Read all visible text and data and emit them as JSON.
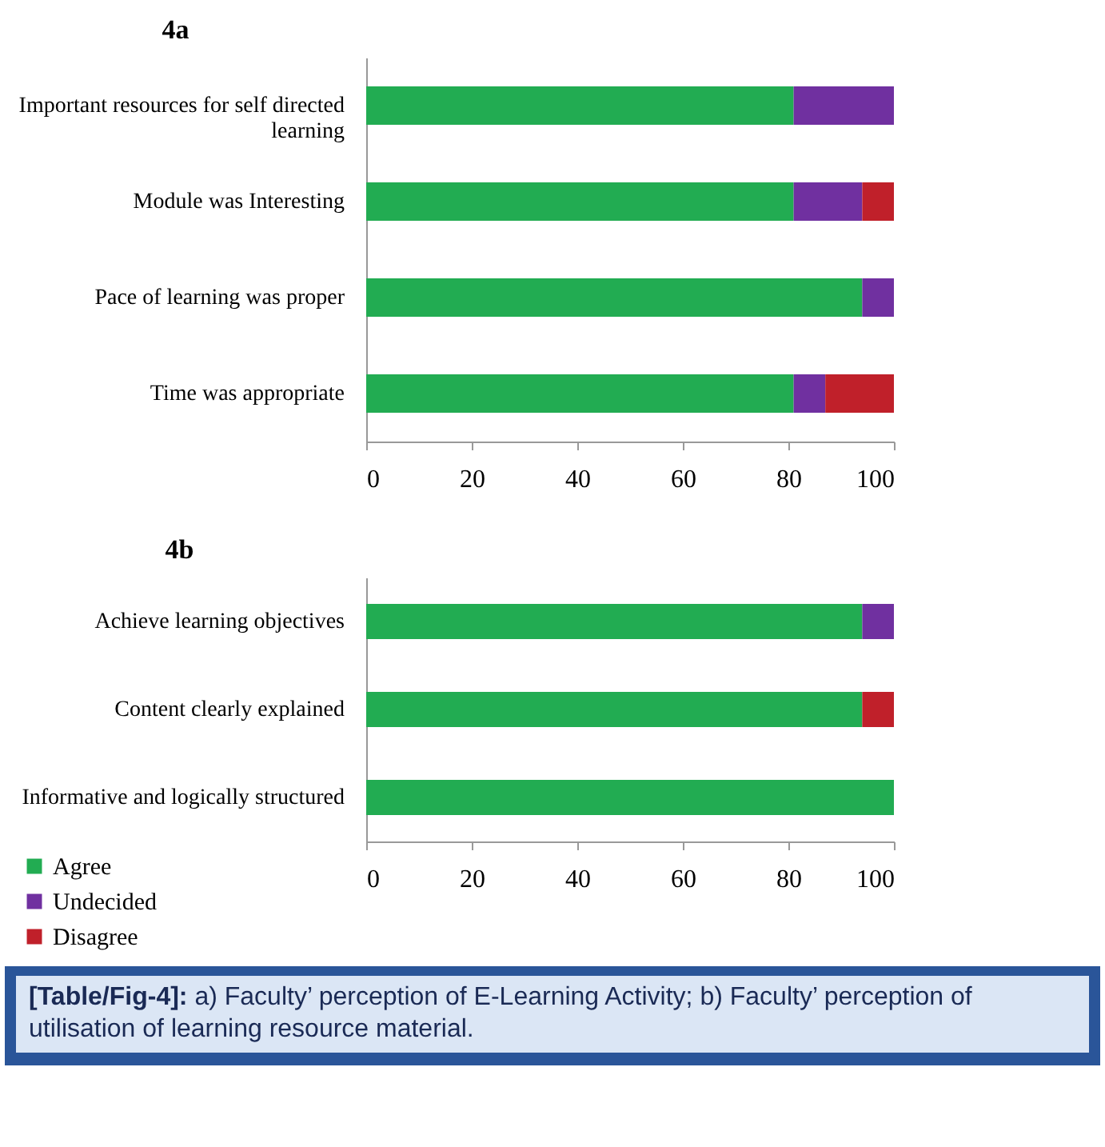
{
  "chart_data": [
    {
      "type": "bar",
      "orientation": "horizontal",
      "stacked": true,
      "title": "4a",
      "categories": [
        "Important resources for self directed learning",
        "Module was Interesting",
        "Pace of learning was proper",
        "Time  was appropriate"
      ],
      "series": [
        {
          "color": "#22ac52",
          "values": [
            81,
            81,
            94,
            81
          ]
        },
        {
          "color": "#7030a0",
          "values": [
            19,
            13,
            6,
            6
          ]
        },
        {
          "color": "#c0202a",
          "values": [
            0,
            6,
            0,
            13
          ]
        }
      ],
      "xlim": [
        0,
        100
      ],
      "xticks": [
        0,
        20,
        40,
        60,
        80,
        100
      ],
      "grid": false,
      "legend": false
    },
    {
      "type": "bar",
      "orientation": "horizontal",
      "stacked": true,
      "title": "4b",
      "categories": [
        "Achieve learning objectives",
        "Content clearly explained",
        "Informative and logically structured"
      ],
      "series": [
        {
          "name": "Agree",
          "color": "#22ac52",
          "values": [
            94,
            94,
            100
          ]
        },
        {
          "name": "Undecided",
          "color": "#7030a0",
          "values": [
            6,
            0,
            0
          ]
        },
        {
          "name": "Disagree",
          "color": "#c0202a",
          "values": [
            0,
            6,
            0
          ]
        }
      ],
      "xlim": [
        0,
        100
      ],
      "xticks": [
        0,
        20,
        40,
        60,
        80,
        100
      ],
      "grid": false,
      "legend": "bottom left",
      "annotations": [
        "[Table/Fig-4]: a) Faculty’ perception of E-Learning Activity; b) Faculty’ perception of utilisation of learning resource material."
      ]
    }
  ]
}
